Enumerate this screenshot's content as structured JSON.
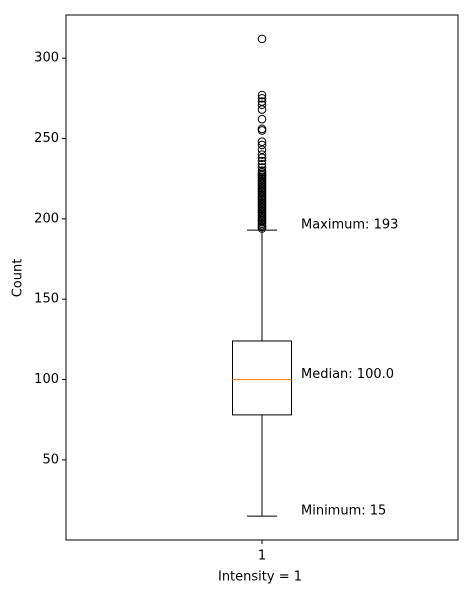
{
  "chart_data": {
    "type": "box",
    "xlabel": "Intensity = 1",
    "ylabel": "Count",
    "categories": [
      "1"
    ],
    "boxes": [
      {
        "min": 15,
        "q1": 78,
        "median": 100,
        "q3": 124,
        "max": 193,
        "outliers": [
          194,
          195,
          196,
          197,
          198,
          199,
          200,
          201,
          202,
          203,
          204,
          205,
          206,
          207,
          208,
          209,
          210,
          211,
          212,
          213,
          214,
          215,
          216,
          217,
          218,
          219,
          220,
          221,
          222,
          223,
          224,
          225,
          226,
          227,
          228,
          229,
          230,
          232,
          234,
          236,
          238,
          240,
          243,
          246,
          248,
          255,
          256,
          262,
          268,
          271,
          273,
          275,
          277,
          312
        ]
      }
    ],
    "annotations": [
      "Maximum: 193",
      "Median: 100.0",
      "Minimum: 15"
    ],
    "box_color": "#000000",
    "median_color": "#ff7f0e",
    "ylim": [
      0.15,
      326.85
    ],
    "yticks": [
      50,
      100,
      150,
      200,
      250,
      300
    ]
  }
}
